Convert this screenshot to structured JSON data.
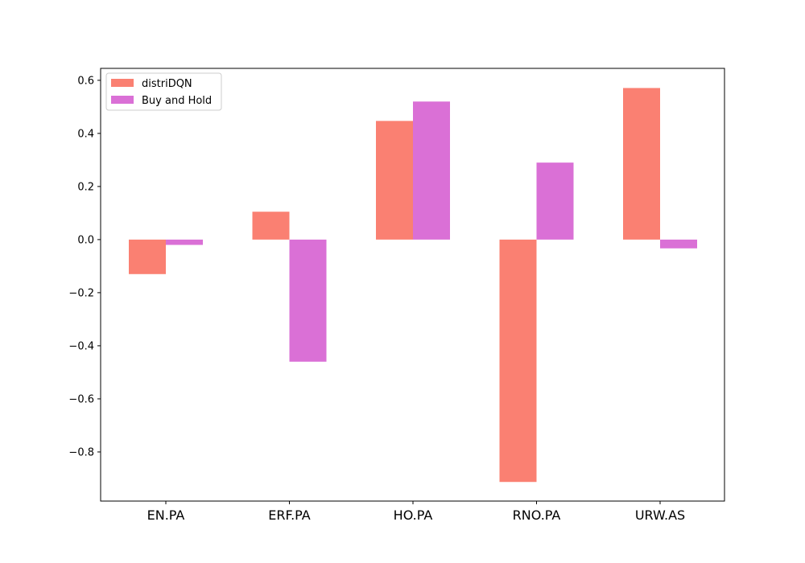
{
  "chart_data": {
    "type": "bar",
    "categories": [
      "EN.PA",
      "ERF.PA",
      "HO.PA",
      "RNO.PA",
      "URW.AS"
    ],
    "series": [
      {
        "name": "distriDQN",
        "values": [
          -0.13,
          0.105,
          0.447,
          -0.913,
          0.571
        ],
        "color": "#fa8072"
      },
      {
        "name": "Buy and Hold",
        "values": [
          -0.02,
          -0.46,
          0.52,
          0.29,
          -0.033
        ],
        "color": "#da70d6"
      }
    ],
    "ylim": [
      -0.985,
      0.645
    ],
    "yticks": [
      -0.8,
      -0.6,
      -0.4,
      -0.2,
      0.0,
      0.2,
      0.4,
      0.6
    ],
    "ytick_labels": [
      "−0.8",
      "−0.6",
      "−0.4",
      "−0.2",
      "0.0",
      "0.2",
      "0.4",
      "0.6"
    ],
    "grid": false,
    "legend_position": "top-left",
    "title": "",
    "xlabel": "",
    "ylabel": ""
  }
}
